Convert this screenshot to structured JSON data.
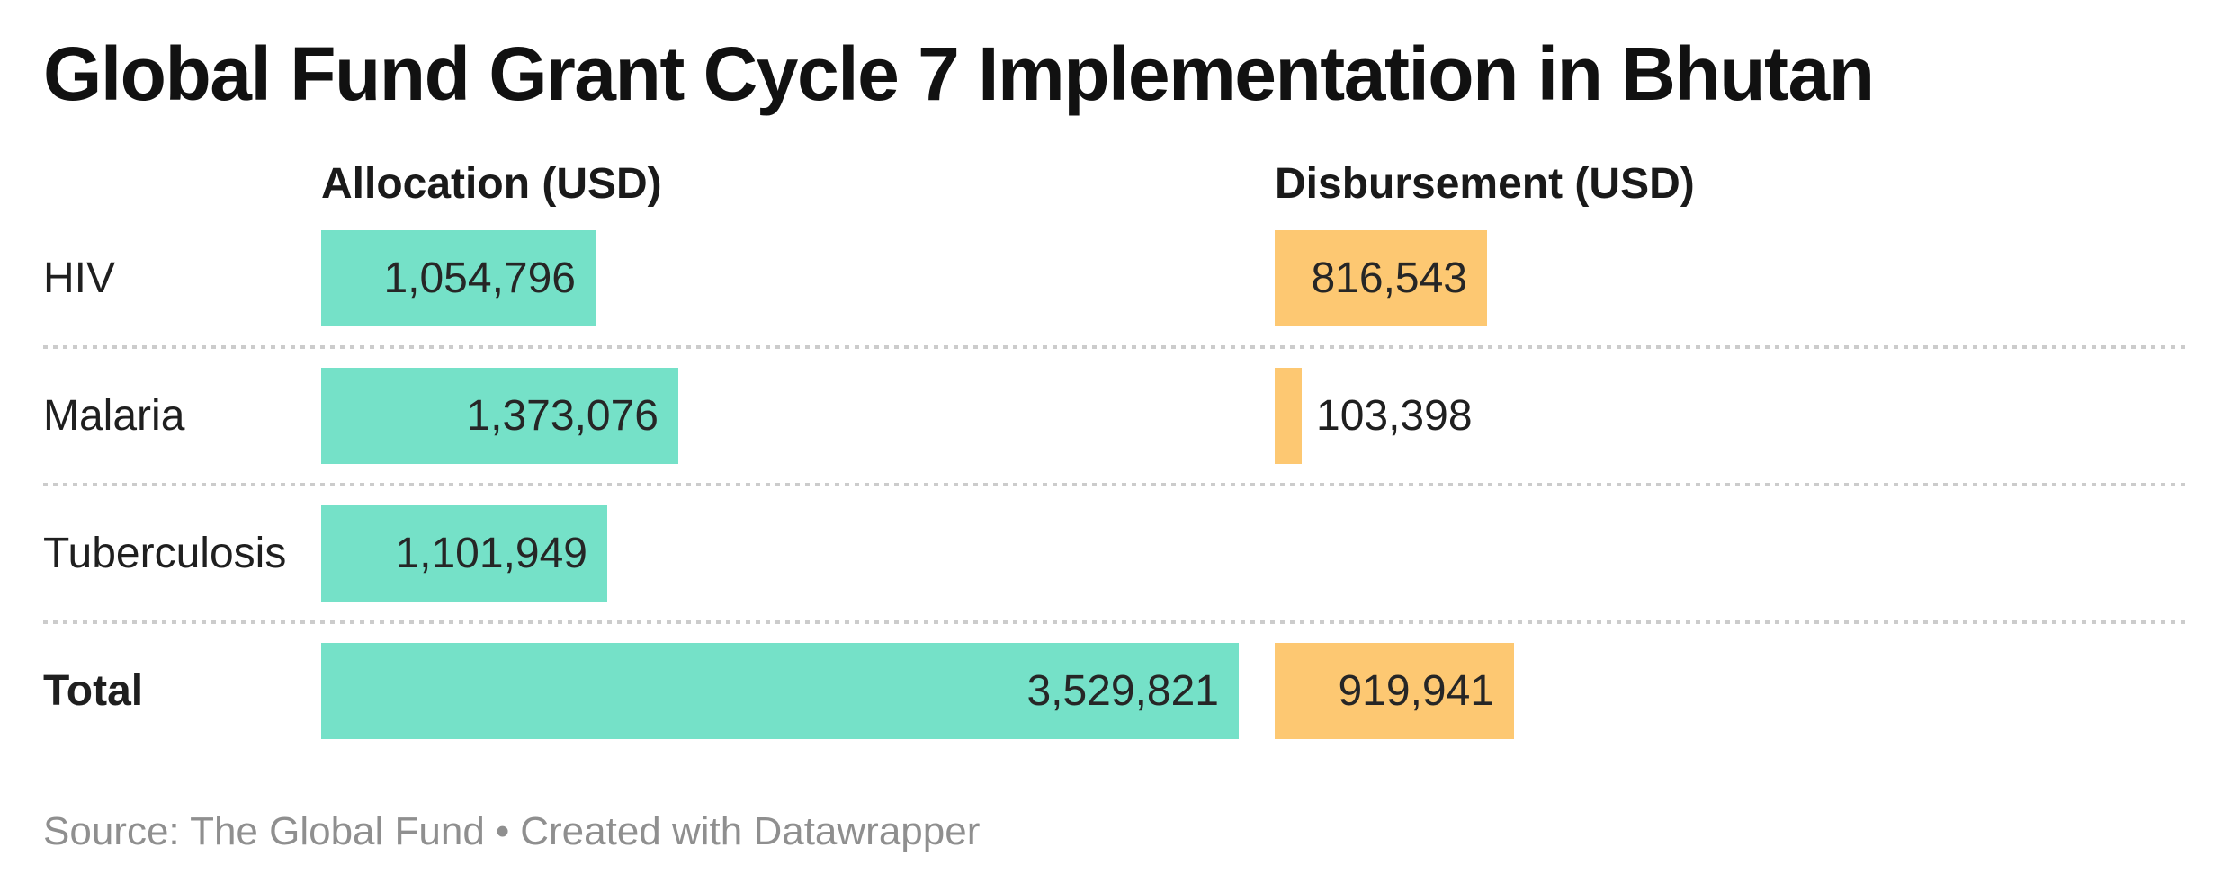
{
  "title": "Global Fund Grant Cycle 7 Implementation in Bhutan",
  "columns": {
    "allocation": "Allocation (USD)",
    "disbursement": "Disbursement (USD)"
  },
  "footer": {
    "source": "Source: The Global Fund",
    "separator": "•",
    "credit": "Created with Datawrapper"
  },
  "colors": {
    "allocation_bar": "#75e1c8",
    "disbursement_bar": "#fdc872",
    "separator_dots": "#cccccc",
    "footer_text": "#8f8f8f"
  },
  "chart_data": {
    "type": "bar",
    "orientation": "horizontal",
    "title": "Global Fund Grant Cycle 7 Implementation in Bhutan",
    "categories": [
      "HIV",
      "Malaria",
      "Tuberculosis",
      "Total"
    ],
    "series": [
      {
        "name": "Allocation (USD)",
        "values": [
          1054796,
          1373076,
          1101949,
          3529821
        ]
      },
      {
        "name": "Disbursement (USD)",
        "values": [
          816543,
          103398,
          null,
          919941
        ]
      }
    ],
    "xlabel": "",
    "ylabel": "",
    "xlim": [
      0,
      3529821
    ],
    "grid": false,
    "legend_position": "column-headers",
    "value_label_format": "thousands-separated, shown on each bar",
    "bold_categories": [
      "Total"
    ]
  }
}
